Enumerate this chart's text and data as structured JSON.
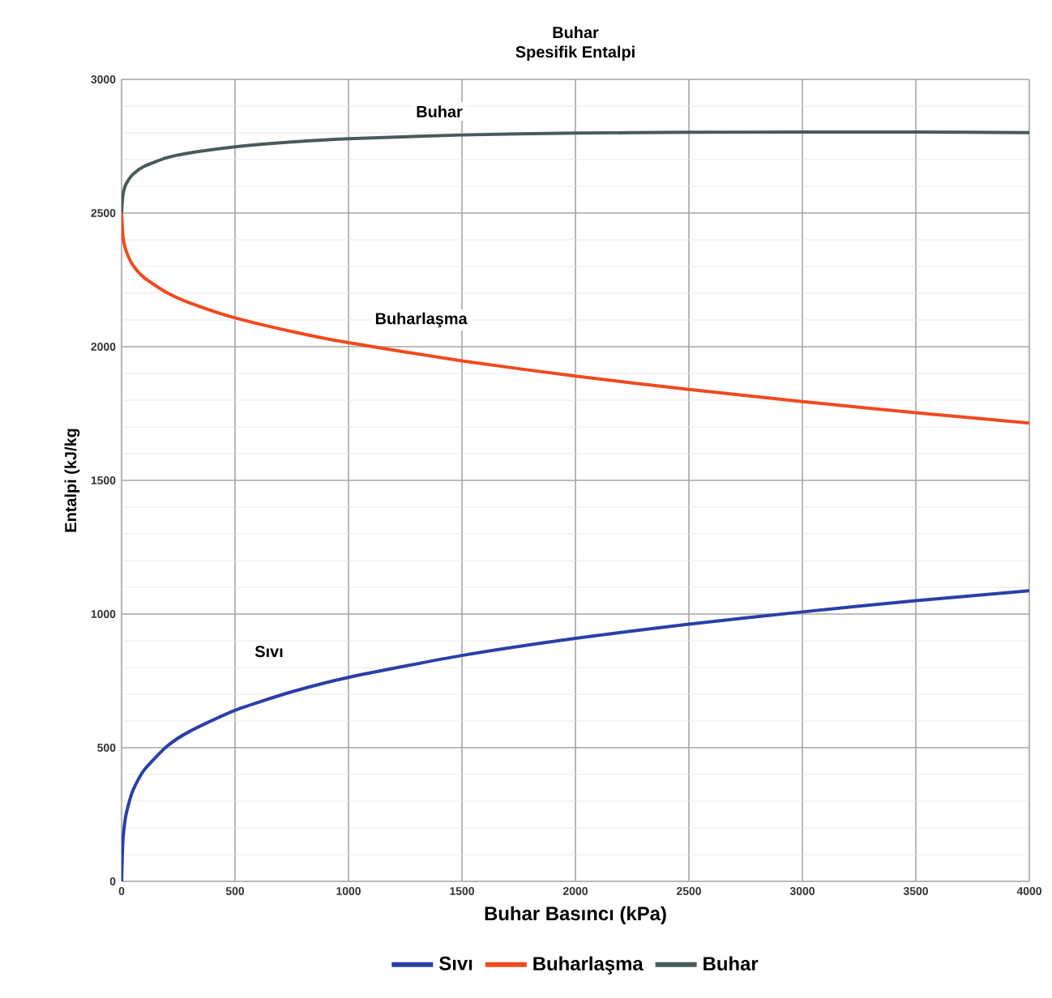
{
  "chart_data": {
    "type": "line",
    "title": "Buhar",
    "subtitle": "Spesifik Entalpi",
    "xlabel": "Buhar Basıncı (kPa)",
    "ylabel": "Entalpi (kJ/kg",
    "x": [
      0.6,
      1,
      5,
      10,
      20,
      50,
      100,
      200,
      300,
      500,
      750,
      1000,
      1500,
      2000,
      2500,
      3000,
      3500,
      4000
    ],
    "series": [
      {
        "name": "Sıvı",
        "color": "#2a3fa8",
        "values": [
          0,
          29,
          138,
          192,
          251,
          340,
          417,
          505,
          561,
          640,
          709,
          763,
          845,
          909,
          962,
          1008,
          1050,
          1087
        ]
      },
      {
        "name": "Buharlaşma",
        "color": "#f04a1e",
        "values": [
          2501,
          2485,
          2423,
          2392,
          2358,
          2305,
          2258,
          2202,
          2164,
          2108,
          2057,
          2015,
          1947,
          1890,
          1840,
          1795,
          1753,
          1714
        ]
      },
      {
        "name": "Buhar",
        "color": "#4a5a5a",
        "values": [
          2501,
          2514,
          2561,
          2584,
          2609,
          2645,
          2675,
          2707,
          2725,
          2748,
          2766,
          2778,
          2792,
          2799,
          2802,
          2803,
          2803,
          2801
        ]
      }
    ],
    "xlim": [
      0,
      4000
    ],
    "ylim": [
      0,
      3000
    ],
    "xticks": [
      0,
      500,
      1000,
      1500,
      2000,
      2500,
      3000,
      3500,
      4000
    ],
    "yticks": [
      0,
      500,
      1000,
      1500,
      2000,
      2500,
      3000
    ],
    "grid": true,
    "legend": "bottom",
    "marker": "none",
    "line_style": "solid",
    "annotations": [
      {
        "text": "Buhar",
        "x": 1400,
        "y": 2880
      },
      "Buharlaşma",
      {
        "text": "Sıvı",
        "x": 650,
        "y": 860
      }
    ]
  }
}
